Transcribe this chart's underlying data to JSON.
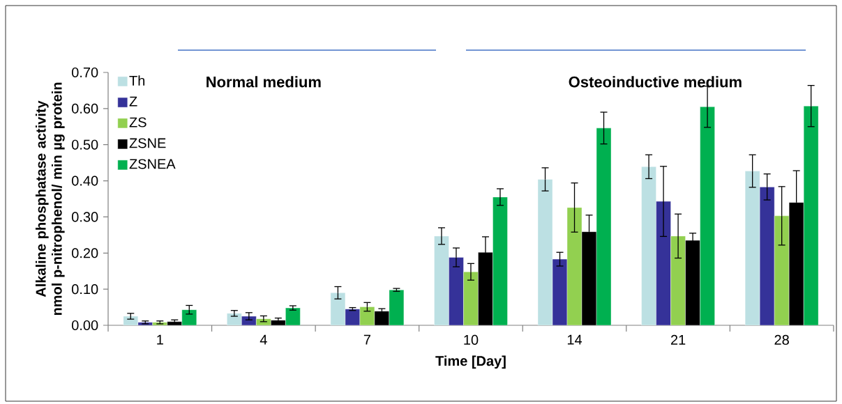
{
  "chart_data": {
    "type": "bar",
    "xlabel": "Time [Day]",
    "ylabel": "Alkaline phosphatase activity nmol p-nitrophenol/ min µg protein",
    "categories": [
      "1",
      "4",
      "7",
      "10",
      "14",
      "21",
      "28"
    ],
    "series": [
      {
        "name": "Th",
        "color": "#bce0e3",
        "values": [
          0.025,
          0.033,
          0.09,
          0.247,
          0.404,
          0.439,
          0.427
        ],
        "errors": [
          0.008,
          0.008,
          0.017,
          0.023,
          0.032,
          0.033,
          0.045
        ]
      },
      {
        "name": "Z",
        "color": "#353299",
        "values": [
          0.008,
          0.025,
          0.045,
          0.188,
          0.183,
          0.343,
          0.383
        ],
        "errors": [
          0.004,
          0.01,
          0.004,
          0.026,
          0.019,
          0.097,
          0.036
        ]
      },
      {
        "name": "ZS",
        "color": "#92d050",
        "values": [
          0.008,
          0.018,
          0.051,
          0.148,
          0.326,
          0.247,
          0.303
        ],
        "errors": [
          0.004,
          0.008,
          0.012,
          0.023,
          0.068,
          0.061,
          0.081
        ]
      },
      {
        "name": "ZSNE",
        "color": "#000000",
        "values": [
          0.01,
          0.014,
          0.039,
          0.202,
          0.259,
          0.235,
          0.34
        ],
        "errors": [
          0.005,
          0.006,
          0.007,
          0.043,
          0.046,
          0.02,
          0.088
        ]
      },
      {
        "name": "ZSNEA",
        "color": "#00b050",
        "values": [
          0.043,
          0.048,
          0.098,
          0.355,
          0.546,
          0.605,
          0.607
        ],
        "errors": [
          0.012,
          0.006,
          0.004,
          0.023,
          0.044,
          0.057,
          0.057
        ]
      }
    ],
    "ylim": [
      0,
      0.7
    ],
    "yticks": [
      {
        "value": 0,
        "label": "0.00"
      },
      {
        "value": 0.1,
        "label": "0.10"
      },
      {
        "value": 0.2,
        "label": "0.20"
      },
      {
        "value": 0.3,
        "label": "0.30"
      },
      {
        "value": 0.4,
        "label": "0.40"
      },
      {
        "value": 0.5,
        "label": "0.50"
      },
      {
        "value": 0.6,
        "label": "0.60"
      },
      {
        "value": 0.7,
        "label": "0.70"
      }
    ],
    "grid": false,
    "legend": "top left",
    "annotations": [
      "Normal medium",
      "Osteoinductive medium"
    ]
  }
}
